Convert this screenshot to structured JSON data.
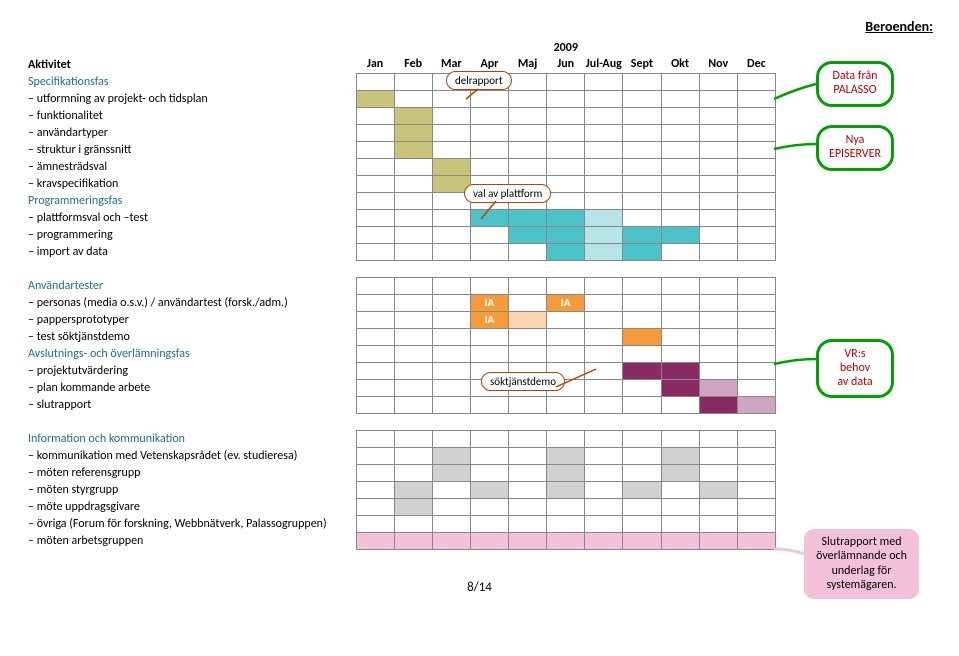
{
  "header": {
    "title": "Beroenden:"
  },
  "year": "2009",
  "months": [
    "Jan",
    "Feb",
    "Mar",
    "Apr",
    "Maj",
    "Jun",
    "Jul-Aug",
    "Sept",
    "Okt",
    "Nov",
    "Dec"
  ],
  "activity_header": "Aktivitet",
  "callouts": {
    "delrapport": "delrapport",
    "plattform": "val av plattform",
    "soktjanst": "söktjänstdemo"
  },
  "bubbles": {
    "palasso": {
      "l1": "Data från",
      "l2": "PALASSO"
    },
    "episerver": {
      "l1": "Nya",
      "l2": "EPISERVER"
    },
    "vr": {
      "l1": "VR:s behov",
      "l2": "av data"
    },
    "slut": "Slutrapport med överlämnande och underlag för systemägaren."
  },
  "ia_label": "IA",
  "colors": {
    "olive": "#c8c47a",
    "teal": "#4bc3c9",
    "teal_light": "#b6e5e7",
    "orange": "#f59b3a",
    "orange_light": "#fbd5ae",
    "purple": "#8a2a62",
    "purple_light": "#cfa6c1",
    "grey": "#d1d1d1",
    "pink": "#f4c2d8"
  },
  "rows": [
    {
      "label": "Specifikationsfas",
      "class": "phase-title",
      "cells": [
        "",
        "",
        "",
        "",
        "",
        "",
        "",
        "",
        "",
        "",
        ""
      ]
    },
    {
      "label": "– utformning av projekt- och tidsplan",
      "fill": [
        "olive",
        "",
        "",
        "",
        "",
        "",
        "",
        "",
        "",
        "",
        ""
      ]
    },
    {
      "label": "– funktionalitet",
      "fill": [
        "",
        "olive",
        "",
        "",
        "",
        "",
        "",
        "",
        "",
        "",
        ""
      ]
    },
    {
      "label": "– användartyper",
      "fill": [
        "",
        "olive",
        "",
        "",
        "",
        "",
        "",
        "",
        "",
        "",
        ""
      ]
    },
    {
      "label": "– struktur i gränssnitt",
      "fill": [
        "",
        "olive",
        "",
        "",
        "",
        "",
        "",
        "",
        "",
        "",
        ""
      ]
    },
    {
      "label": "– ämnesträdsval",
      "fill": [
        "",
        "",
        "olive",
        "",
        "",
        "",
        "",
        "",
        "",
        "",
        ""
      ]
    },
    {
      "label": "– kravspecifikation",
      "fill": [
        "",
        "",
        "olive",
        "",
        "",
        "",
        "",
        "",
        "",
        "",
        ""
      ]
    },
    {
      "label": "Programmeringsfas",
      "class": "phase-title",
      "fill": [
        "",
        "",
        "",
        "",
        "",
        "",
        "",
        "",
        "",
        "",
        ""
      ]
    },
    {
      "label": "– plattformsval och –test",
      "fill": [
        "",
        "",
        "",
        "teal",
        "teal",
        "teal",
        "teal_light",
        "",
        "",
        "",
        ""
      ]
    },
    {
      "label": "– programmering",
      "fill": [
        "",
        "",
        "",
        "",
        "teal",
        "teal",
        "teal_light",
        "teal",
        "teal",
        "",
        ""
      ]
    },
    {
      "label": "– import av data",
      "fill": [
        "",
        "",
        "",
        "",
        "",
        "teal",
        "teal_light",
        "teal",
        "",
        "",
        ""
      ]
    },
    {
      "label": "",
      "blank": true
    },
    {
      "label": "Användartester",
      "class": "phase-title",
      "fill": [
        "",
        "",
        "",
        "",
        "",
        "",
        "",
        "",
        "",
        "",
        ""
      ]
    },
    {
      "label": "– personas (media o.s.v.) / användartest (forsk./adm.)",
      "fill": [
        "",
        "",
        "",
        "orange",
        "",
        "orange",
        "",
        "",
        "",
        "",
        ""
      ],
      "text": [
        "",
        "",
        "",
        "IA",
        "",
        "IA",
        "",
        "",
        "",
        "",
        ""
      ]
    },
    {
      "label": "– pappersprototyper",
      "fill": [
        "",
        "",
        "",
        "orange",
        "orange_light",
        "",
        "",
        "",
        "",
        "",
        ""
      ],
      "text": [
        "",
        "",
        "",
        "IA",
        "",
        "",
        "",
        "",
        "",
        "",
        ""
      ]
    },
    {
      "label": "– test söktjänstdemo",
      "fill": [
        "",
        "",
        "",
        "",
        "",
        "",
        "",
        "orange",
        "",
        "",
        ""
      ]
    },
    {
      "label": "Avslutnings- och överlämningsfas",
      "class": "phase-title",
      "fill": [
        "",
        "",
        "",
        "",
        "",
        "",
        "",
        "",
        "",
        "",
        ""
      ]
    },
    {
      "label": "– projektutvärdering",
      "fill": [
        "",
        "",
        "",
        "",
        "",
        "",
        "",
        "purple",
        "purple",
        "",
        ""
      ]
    },
    {
      "label": "– plan kommande arbete",
      "fill": [
        "",
        "",
        "",
        "",
        "",
        "",
        "",
        "",
        "purple",
        "purple_light",
        ""
      ]
    },
    {
      "label": "– slutrapport",
      "fill": [
        "",
        "",
        "",
        "",
        "",
        "",
        "",
        "",
        "",
        "purple",
        "purple_light"
      ]
    },
    {
      "label": "",
      "blank": true
    },
    {
      "label": "Information och kommunikation",
      "class": "phase-title",
      "fill": [
        "",
        "",
        "",
        "",
        "",
        "",
        "",
        "",
        "",
        "",
        ""
      ]
    },
    {
      "label": "– kommunikation med Vetenskapsrådet (ev. studieresa)",
      "fill": [
        "",
        "",
        "grey",
        "",
        "",
        "grey",
        "",
        "",
        "grey",
        "",
        ""
      ]
    },
    {
      "label": "– möten referensgrupp",
      "fill": [
        "",
        "",
        "grey",
        "",
        "",
        "grey",
        "",
        "",
        "grey",
        "",
        ""
      ]
    },
    {
      "label": "– möten styrgrupp",
      "fill": [
        "",
        "grey",
        "",
        "grey",
        "",
        "grey",
        "",
        "grey",
        "",
        "grey",
        ""
      ]
    },
    {
      "label": "– möte uppdragsgivare",
      "fill": [
        "",
        "grey",
        "",
        "",
        "",
        "",
        "",
        "",
        "",
        "",
        ""
      ]
    },
    {
      "label": "– övriga (Forum för forskning, Webbnätverk, Palassogruppen)",
      "fill": [
        "",
        "",
        "",
        "",
        "",
        "",
        "",
        "",
        "",
        "",
        ""
      ]
    },
    {
      "label": "– möten arbetsgruppen",
      "fill": [
        "pink",
        "pink",
        "pink",
        "pink",
        "pink",
        "pink",
        "pink",
        "pink",
        "pink",
        "pink",
        "pink"
      ]
    }
  ],
  "page": "8/14"
}
